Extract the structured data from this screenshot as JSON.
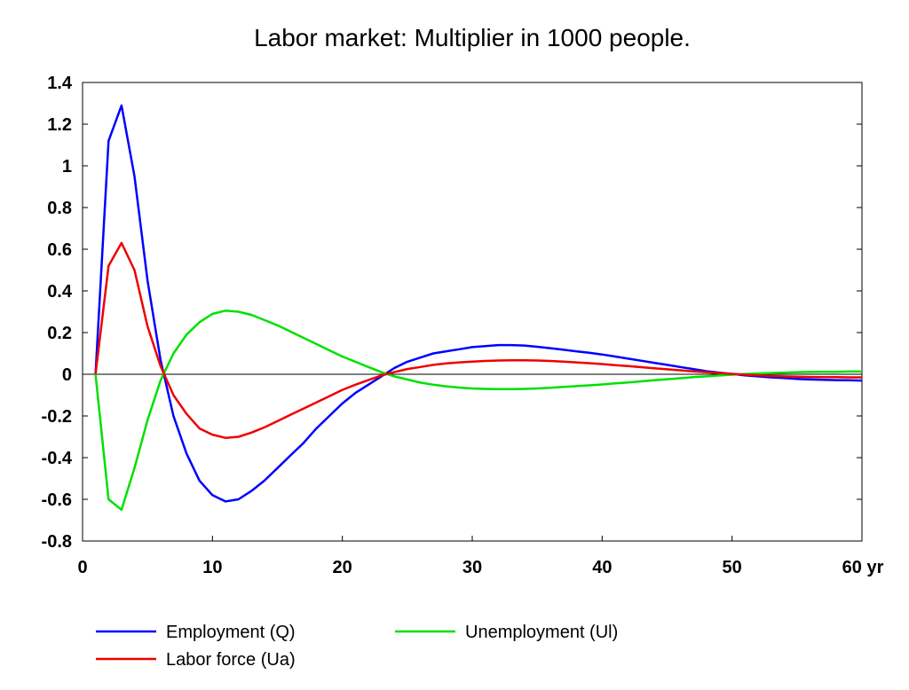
{
  "chart_data": {
    "type": "line",
    "title": "Labor market: Multiplier in 1000 people.",
    "xlabel": "",
    "ylabel": "",
    "xlim": [
      0,
      60
    ],
    "ylim": [
      -0.8,
      1.4
    ],
    "x_tick_labels": [
      "0",
      "10",
      "20",
      "30",
      "40",
      "50",
      "60 yr"
    ],
    "x_tick_values": [
      0,
      10,
      20,
      30,
      40,
      50,
      60
    ],
    "y_tick_labels": [
      "1.4",
      "1.2",
      "1",
      "0.8",
      "0.6",
      "0.4",
      "0.2",
      "0",
      "-0.2",
      "-0.4",
      "-0.6",
      "-0.8"
    ],
    "y_tick_values": [
      1.4,
      1.2,
      1,
      0.8,
      0.6,
      0.4,
      0.2,
      0,
      -0.2,
      -0.4,
      -0.6,
      -0.8
    ],
    "grid": false,
    "legend_position": "bottom",
    "x": [
      1,
      2,
      3,
      4,
      5,
      6,
      7,
      8,
      9,
      10,
      11,
      12,
      13,
      14,
      15,
      16,
      17,
      18,
      19,
      20,
      21,
      22,
      23,
      24,
      25,
      26,
      27,
      28,
      29,
      30,
      31,
      32,
      33,
      34,
      35,
      36,
      37,
      38,
      39,
      40,
      41,
      42,
      43,
      44,
      45,
      46,
      47,
      48,
      49,
      50,
      51,
      52,
      53,
      54,
      55,
      56,
      57,
      58,
      59,
      60
    ],
    "series": [
      {
        "name": "Employment (Q)",
        "color": "#0000ff",
        "values": [
          0,
          1.12,
          1.29,
          0.95,
          0.45,
          0.07,
          -0.2,
          -0.38,
          -0.51,
          -0.58,
          -0.61,
          -0.6,
          -0.56,
          -0.51,
          -0.45,
          -0.39,
          -0.33,
          -0.26,
          -0.2,
          -0.14,
          -0.09,
          -0.05,
          -0.01,
          0.03,
          0.06,
          0.08,
          0.1,
          0.11,
          0.12,
          0.13,
          0.135,
          0.14,
          0.14,
          0.138,
          0.132,
          0.125,
          0.118,
          0.11,
          0.103,
          0.095,
          0.085,
          0.075,
          0.065,
          0.055,
          0.045,
          0.035,
          0.025,
          0.015,
          0.008,
          0.001,
          -0.005,
          -0.01,
          -0.015,
          -0.018,
          -0.022,
          -0.025,
          -0.027,
          -0.028,
          -0.029,
          -0.03
        ]
      },
      {
        "name": "Unemployment (Ul)",
        "color": "#00e000",
        "values": [
          0,
          -0.6,
          -0.65,
          -0.45,
          -0.22,
          -0.03,
          0.1,
          0.19,
          0.25,
          0.29,
          0.305,
          0.3,
          0.285,
          0.26,
          0.235,
          0.205,
          0.175,
          0.145,
          0.115,
          0.085,
          0.06,
          0.035,
          0.01,
          -0.01,
          -0.025,
          -0.04,
          -0.05,
          -0.058,
          -0.064,
          -0.068,
          -0.07,
          -0.071,
          -0.071,
          -0.07,
          -0.068,
          -0.065,
          -0.061,
          -0.057,
          -0.053,
          -0.049,
          -0.044,
          -0.039,
          -0.034,
          -0.029,
          -0.024,
          -0.019,
          -0.014,
          -0.01,
          -0.006,
          -0.002,
          0.001,
          0.004,
          0.006,
          0.008,
          0.01,
          0.011,
          0.012,
          0.012,
          0.013,
          0.013
        ]
      },
      {
        "name": "Labor force (Ua)",
        "color": "#ee0000",
        "values": [
          0,
          0.52,
          0.63,
          0.5,
          0.23,
          0.04,
          -0.1,
          -0.19,
          -0.26,
          -0.29,
          -0.305,
          -0.3,
          -0.28,
          -0.255,
          -0.225,
          -0.195,
          -0.165,
          -0.135,
          -0.105,
          -0.075,
          -0.05,
          -0.028,
          -0.006,
          0.01,
          0.025,
          0.035,
          0.045,
          0.052,
          0.057,
          0.061,
          0.064,
          0.066,
          0.067,
          0.067,
          0.066,
          0.064,
          0.061,
          0.057,
          0.053,
          0.049,
          0.044,
          0.039,
          0.034,
          0.029,
          0.024,
          0.019,
          0.014,
          0.01,
          0.006,
          0.002,
          -0.002,
          -0.005,
          -0.008,
          -0.01,
          -0.012,
          -0.013,
          -0.014,
          -0.014,
          -0.015,
          -0.015
        ]
      }
    ]
  }
}
